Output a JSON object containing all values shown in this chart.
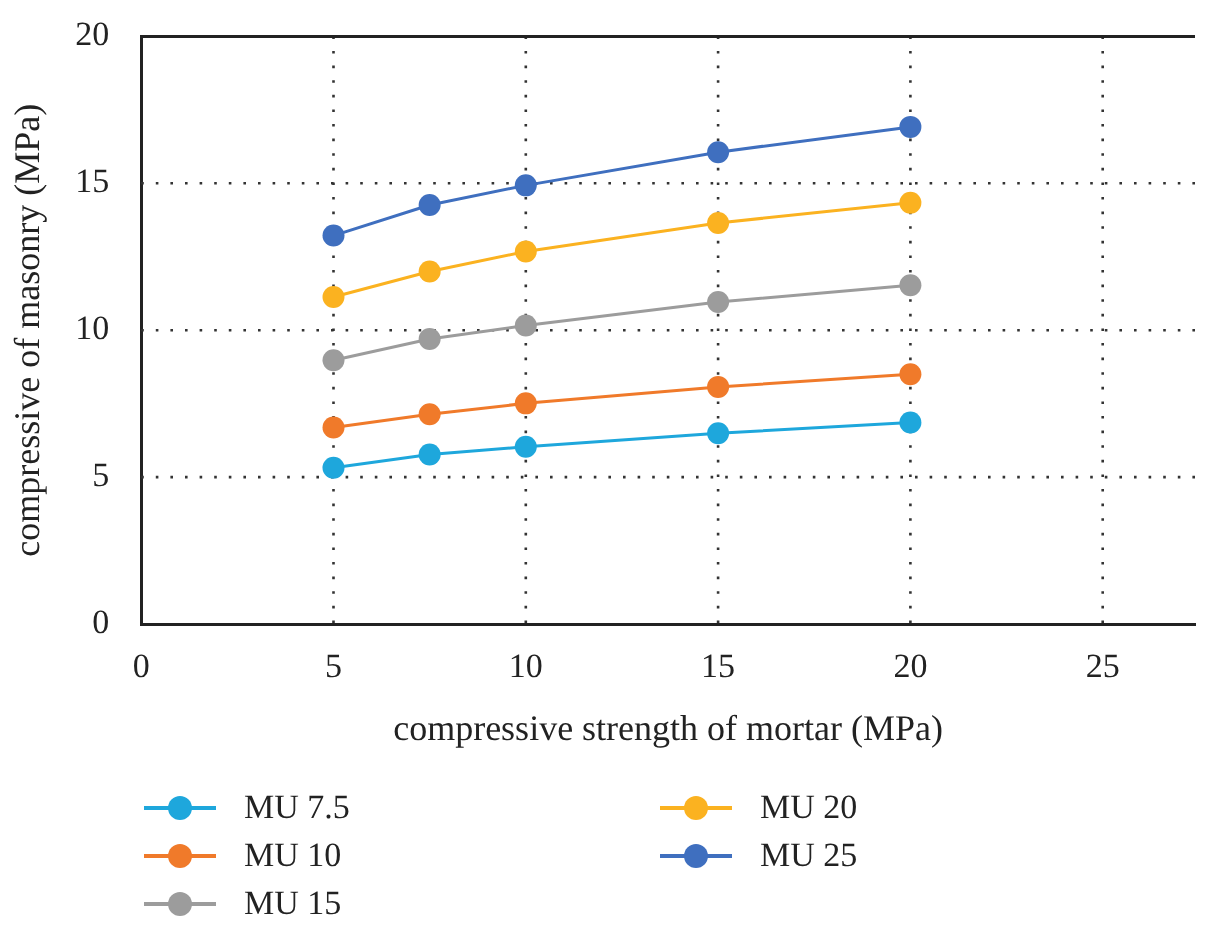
{
  "chart_data": {
    "type": "line",
    "xlabel": "compressive strength of mortar (MPa)",
    "ylabel": "compressive of masonry (MPa)",
    "x": [
      5,
      7.5,
      10,
      15,
      20
    ],
    "series": [
      {
        "name": "MU 7.5",
        "color": "#1ea7dc",
        "values": [
          5.32,
          5.77,
          6.03,
          6.49,
          6.86
        ]
      },
      {
        "name": "MU 10",
        "color": "#f07a2a",
        "values": [
          6.69,
          7.14,
          7.51,
          8.07,
          8.5
        ]
      },
      {
        "name": "MU 15",
        "color": "#9c9c9c",
        "values": [
          8.98,
          9.7,
          10.16,
          10.96,
          11.53
        ]
      },
      {
        "name": "MU 20",
        "color": "#fbb220",
        "values": [
          11.13,
          12.0,
          12.68,
          13.65,
          14.34
        ]
      },
      {
        "name": "MU 25",
        "color": "#3f6fbf",
        "values": [
          13.22,
          14.26,
          14.93,
          16.06,
          16.92
        ]
      }
    ],
    "xlim": [
      0,
      27.4
    ],
    "xticks": [
      0,
      5,
      10,
      15,
      20,
      25
    ],
    "ylim": [
      0,
      20
    ],
    "yticks": [
      0,
      5,
      10,
      15,
      20
    ],
    "grid": true,
    "legend": "bottom left",
    "marker": "circle",
    "line_style": "solid"
  }
}
